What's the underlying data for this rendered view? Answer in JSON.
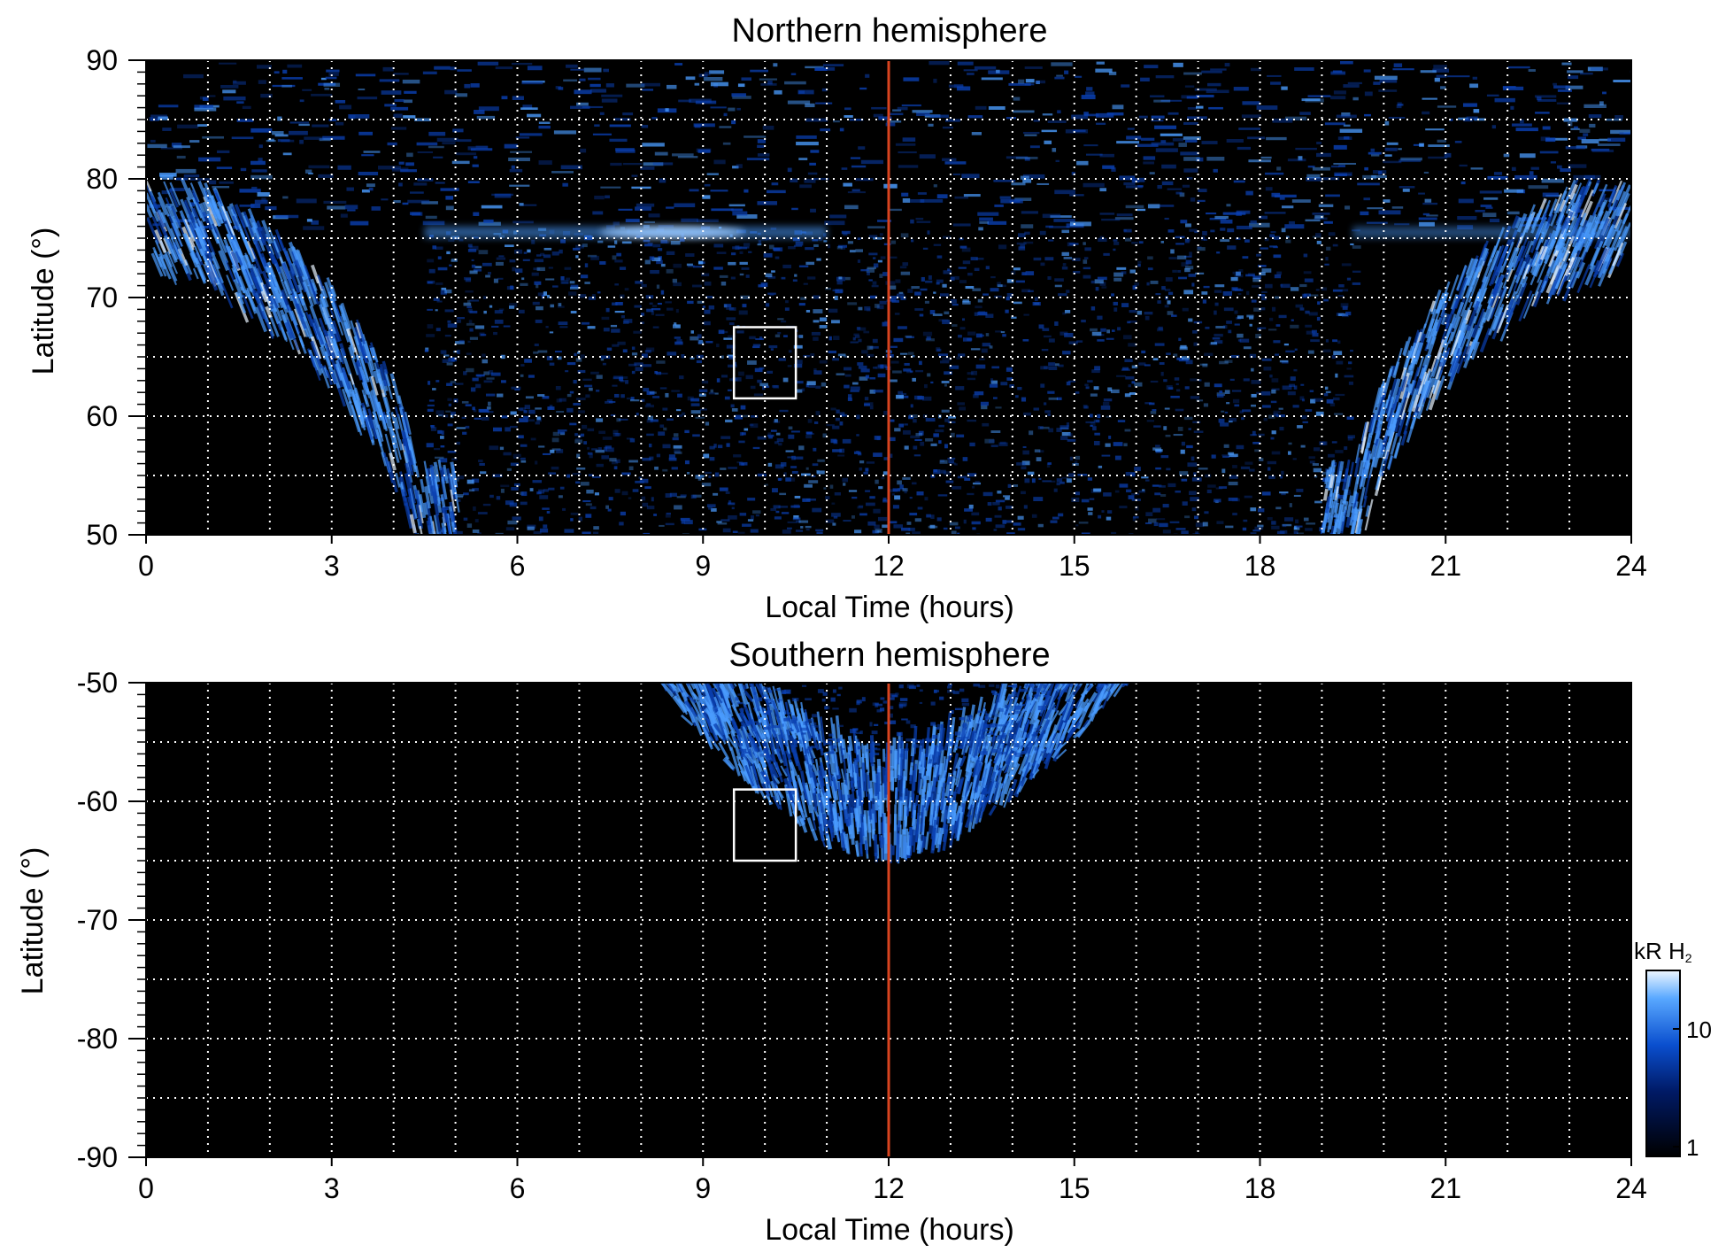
{
  "colors": {
    "background": "#000000",
    "emission_low": "#000820",
    "emission_mid": "#0a3fb0",
    "emission_high": "#4a9cff",
    "emission_peak": "#e8f4ff",
    "grid": "#ffffff",
    "noon_line": "#d8431f",
    "region_box": "#ffffff"
  },
  "chart_data": [
    {
      "type": "heatmap",
      "title": "Northern hemisphere",
      "xlabel": "Local Time (hours)",
      "ylabel": "Latitude (°)",
      "xlim": [
        0,
        24
      ],
      "ylim": [
        50,
        90
      ],
      "x_ticks": [
        "0",
        "3",
        "6",
        "9",
        "12",
        "15",
        "18",
        "21",
        "24"
      ],
      "y_ticks": [
        "50",
        "60",
        "70",
        "80",
        "90"
      ],
      "grid": true,
      "grid_x_step_hours": 1,
      "grid_y_step_deg": 5,
      "reference_line": {
        "axis": "x",
        "value": 12
      },
      "region_box": {
        "x": [
          9.5,
          10.5
        ],
        "y": [
          61.5,
          67.5
        ]
      },
      "main_oval": [
        {
          "lt": 0,
          "lat": 75.5
        },
        {
          "lt": 1,
          "lat": 73.5
        },
        {
          "lt": 2,
          "lat": 70
        },
        {
          "lt": 3,
          "lat": 65
        },
        {
          "lt": 4,
          "lat": 57
        },
        {
          "lt": 4.5,
          "lat": 50
        },
        {
          "lt": 19.5,
          "lat": 50
        },
        {
          "lt": 20,
          "lat": 57
        },
        {
          "lt": 21,
          "lat": 65
        },
        {
          "lt": 22,
          "lat": 70
        },
        {
          "lt": 23,
          "lat": 73.5
        },
        {
          "lt": 24,
          "lat": 75.5
        }
      ],
      "bright_feature": {
        "x": [
          4.5,
          11
        ],
        "y": [
          75,
          76
        ],
        "peak_lt": 8.5
      }
    },
    {
      "type": "heatmap",
      "title": "Southern hemisphere",
      "xlabel": "Local Time (hours)",
      "ylabel": "Latitude (°)",
      "xlim": [
        0,
        24
      ],
      "ylim": [
        -90,
        -50
      ],
      "x_ticks": [
        "0",
        "3",
        "6",
        "9",
        "12",
        "15",
        "18",
        "21",
        "24"
      ],
      "y_ticks": [
        "-50",
        "-60",
        "-70",
        "-80",
        "-90"
      ],
      "grid": true,
      "grid_x_step_hours": 1,
      "grid_y_step_deg": 5,
      "reference_line": {
        "axis": "x",
        "value": 12
      },
      "region_box": {
        "x": [
          9.5,
          10.5
        ],
        "y": [
          -65,
          -59
        ]
      },
      "main_oval": [
        {
          "lt": 8.3,
          "lat": -50
        },
        {
          "lt": 9,
          "lat": -55
        },
        {
          "lt": 10,
          "lat": -60
        },
        {
          "lt": 11,
          "lat": -64
        },
        {
          "lt": 12,
          "lat": -65.5
        },
        {
          "lt": 13,
          "lat": -64
        },
        {
          "lt": 14,
          "lat": -60
        },
        {
          "lt": 15,
          "lat": -55
        },
        {
          "lt": 15.9,
          "lat": -50
        }
      ]
    }
  ],
  "colorbar": {
    "unit_label": "kR H",
    "unit_subscript": "2",
    "ticks": [
      "10",
      "1"
    ],
    "scale": "log",
    "range": [
      1,
      20
    ]
  }
}
